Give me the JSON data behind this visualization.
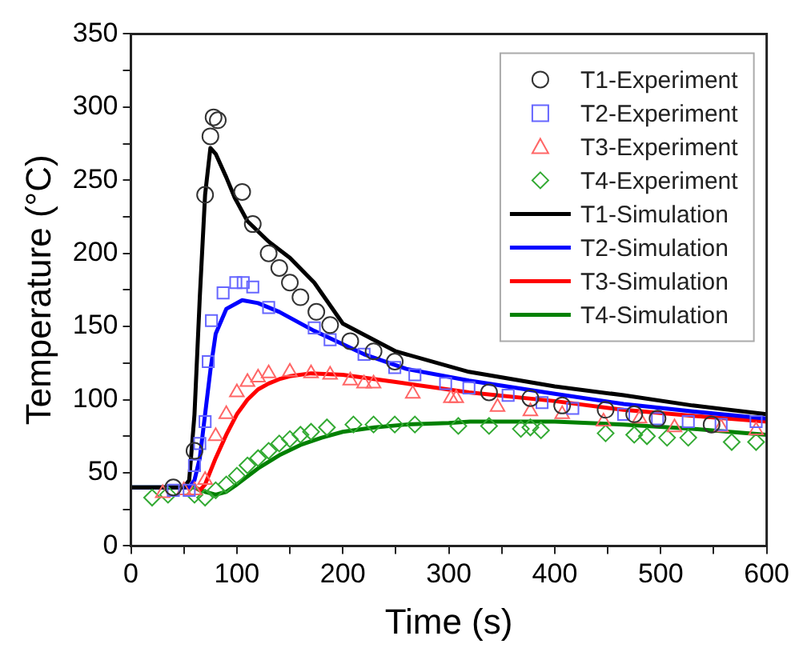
{
  "chart_data": {
    "type": "scatter",
    "xlabel": "Time (s)",
    "ylabel": "Temperature (°C)",
    "xlim": [
      0,
      600
    ],
    "ylim": [
      0,
      350
    ],
    "xticks": [
      0,
      {
        "value": 50,
        "label": null
      },
      100,
      {
        "value": 150,
        "label": null
      },
      200,
      {
        "value": 250,
        "label": null
      },
      300,
      {
        "value": 350,
        "label": null
      },
      400,
      {
        "value": 450,
        "label": null
      },
      500,
      {
        "value": 550,
        "label": null
      },
      600
    ],
    "yticks": [
      0,
      {
        "value": 25,
        "label": null
      },
      50,
      {
        "value": 75,
        "label": null
      },
      100,
      {
        "value": 125,
        "label": null
      },
      150,
      {
        "value": 175,
        "label": null
      },
      200,
      {
        "value": 225,
        "label": null
      },
      250,
      {
        "value": 275,
        "label": null
      },
      300,
      {
        "value": 325,
        "label": null
      },
      350
    ],
    "grid": false,
    "legend": "top right",
    "series": [
      {
        "name": "T1-Experiment",
        "type": "scatter",
        "marker": "circle",
        "color": "#333333",
        "x": [
          40,
          60,
          70,
          75,
          78,
          82,
          105,
          115,
          130,
          140,
          150,
          160,
          175,
          188,
          207,
          229,
          249,
          338,
          377,
          407,
          448,
          475,
          497,
          548
        ],
        "values": [
          40,
          65,
          240,
          280,
          293,
          291,
          242,
          220,
          200,
          190,
          180,
          170,
          160,
          151,
          140,
          133,
          126,
          105,
          101,
          96,
          93,
          90,
          87,
          83
        ]
      },
      {
        "name": "T2-Experiment",
        "type": "scatter",
        "marker": "square",
        "color": "#6666ff",
        "x": [
          40,
          55,
          60,
          65,
          70,
          73,
          76,
          87,
          99,
          106,
          115,
          130,
          173,
          188,
          220,
          249,
          268,
          297,
          319,
          356,
          388,
          417,
          465,
          497,
          526,
          557,
          590
        ],
        "values": [
          38,
          38,
          55,
          70,
          85,
          126,
          154,
          173,
          180,
          180,
          177,
          163,
          149,
          141,
          131,
          122,
          117,
          111,
          108,
          103,
          98,
          94,
          90,
          87,
          85,
          83,
          85
        ]
      },
      {
        "name": "T3-Experiment",
        "type": "scatter",
        "marker": "triangle",
        "color": "#ff6666",
        "x": [
          30,
          50,
          60,
          70,
          80,
          90,
          100,
          110,
          120,
          130,
          150,
          170,
          188,
          207,
          220,
          229,
          266,
          302,
          307,
          346,
          377,
          407,
          446,
          480,
          513,
          557,
          590
        ],
        "values": [
          36,
          38,
          38,
          45,
          75,
          90,
          105,
          112,
          115,
          118,
          119,
          118,
          117,
          113,
          111,
          111,
          104,
          101,
          101,
          95,
          92,
          90,
          85,
          87,
          81,
          81,
          79
        ]
      },
      {
        "name": "T4-Experiment",
        "type": "scatter",
        "marker": "diamond",
        "color": "#33aa33",
        "x": [
          20,
          35,
          60,
          70,
          80,
          90,
          100,
          110,
          120,
          130,
          140,
          150,
          160,
          170,
          185,
          210,
          229,
          249,
          268,
          309,
          338,
          368,
          377,
          387,
          448,
          475,
          487,
          506,
          526,
          567,
          590
        ],
        "values": [
          33,
          35,
          35,
          33,
          38,
          42,
          48,
          55,
          60,
          65,
          70,
          73,
          76,
          78,
          81,
          83,
          83,
          83,
          83,
          82,
          82,
          80,
          81,
          79,
          77,
          76,
          75,
          74,
          74,
          71,
          71
        ]
      },
      {
        "name": "T1-Simulation",
        "type": "line",
        "marker": "none",
        "color": "#000000",
        "x": [
          0,
          50,
          55,
          60,
          65,
          70,
          75,
          80,
          90,
          98,
          110,
          130,
          150,
          173,
          200,
          250,
          319,
          400,
          465,
          530,
          600
        ],
        "values": [
          40,
          40,
          45,
          90,
          170,
          240,
          272,
          268,
          252,
          238,
          222,
          208,
          197,
          180,
          152,
          133,
          119,
          109,
          103,
          96,
          90
        ]
      },
      {
        "name": "T2-Simulation",
        "type": "line",
        "marker": "none",
        "color": "#0000ff",
        "x": [
          0,
          55,
          60,
          65,
          70,
          75,
          80,
          90,
          105,
          120,
          140,
          173,
          220,
          260,
          319,
          400,
          465,
          530,
          600
        ],
        "values": [
          40,
          40,
          45,
          60,
          90,
          120,
          145,
          162,
          168,
          166,
          160,
          147,
          131,
          121,
          113,
          104,
          97,
          92,
          87
        ]
      },
      {
        "name": "T3-Simulation",
        "type": "line",
        "marker": "none",
        "color": "#ff0000",
        "x": [
          60,
          65,
          70,
          80,
          90,
          100,
          110,
          120,
          130,
          140,
          150,
          170,
          200,
          250,
          319,
          400,
          465,
          530,
          600
        ],
        "values": [
          40,
          38,
          42,
          60,
          76,
          90,
          100,
          107,
          111,
          114,
          116,
          118,
          117,
          112,
          105,
          99,
          93,
          89,
          85
        ]
      },
      {
        "name": "T4-Simulation",
        "type": "line",
        "marker": "none",
        "color": "#008000",
        "x": [
          0,
          60,
          70,
          80,
          90,
          100,
          120,
          140,
          160,
          180,
          200,
          230,
          260,
          300,
          320,
          400,
          465,
          530,
          600
        ],
        "values": [
          40,
          40,
          37,
          35,
          37,
          42,
          53,
          62,
          69,
          74,
          78,
          81,
          83,
          84,
          85,
          85,
          83,
          80,
          76
        ]
      }
    ]
  }
}
